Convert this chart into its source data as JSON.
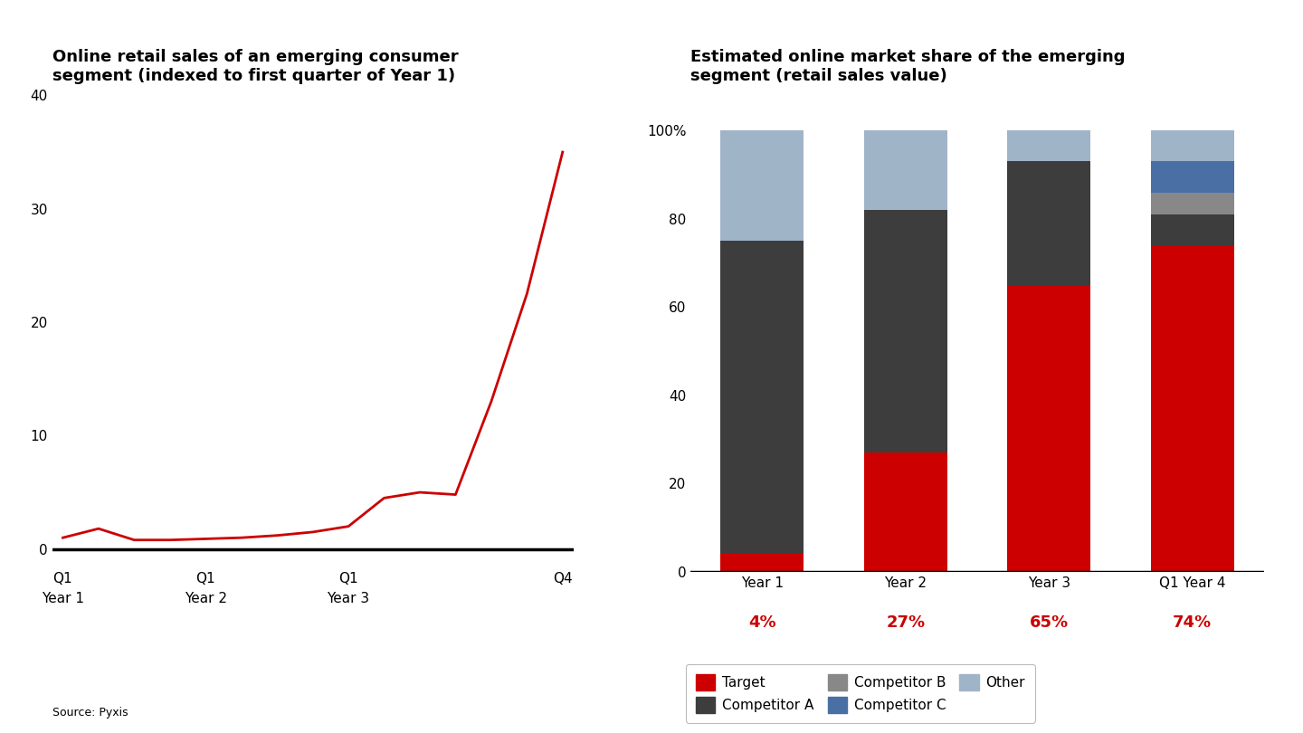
{
  "line_title": "Online retail sales of an emerging consumer\nsegment (indexed to first quarter of Year 1)",
  "bar_title": "Estimated online market share of the emerging\nsegment (retail sales value)",
  "source": "Source: Pyxis",
  "line_x_full": [
    0,
    1,
    2,
    3,
    4,
    5,
    6,
    7,
    8,
    9,
    10,
    11,
    12,
    13,
    14
  ],
  "line_y": [
    1.0,
    1.8,
    0.8,
    0.8,
    0.9,
    1.0,
    1.2,
    1.5,
    2.0,
    4.5,
    5.0,
    4.8,
    13.0,
    22.5,
    35.0
  ],
  "line_color": "#cc0000",
  "line_width": 2.0,
  "yticks_line": [
    0,
    10,
    20,
    30,
    40
  ],
  "xtick_positions": [
    0,
    4,
    8,
    14
  ],
  "xtick_labels_top": [
    "Q1",
    "Q1",
    "Q1",
    "Q4"
  ],
  "xtick_labels_bottom": [
    "Year 1",
    "Year 2",
    "Year 3",
    ""
  ],
  "bar_categories": [
    "Year 1",
    "Year 2",
    "Year 3",
    "Q1 Year 4"
  ],
  "bar_data": {
    "Target": [
      4,
      27,
      65,
      74
    ],
    "Competitor A": [
      71,
      55,
      28,
      7
    ],
    "Competitor B": [
      0,
      0,
      0,
      5
    ],
    "Competitor C": [
      0,
      0,
      0,
      7
    ],
    "Other": [
      25,
      18,
      7,
      7
    ]
  },
  "bar_colors": {
    "Target": "#cc0000",
    "Competitor A": "#3d3d3d",
    "Competitor B": "#888888",
    "Competitor C": "#4a6fa5",
    "Other": "#a0b4c8"
  },
  "bar_percentages": [
    "4%",
    "27%",
    "65%",
    "74%"
  ],
  "bar_pct_color": "#cc0000",
  "bg_color": "#ffffff",
  "title_fontsize": 13,
  "tick_fontsize": 11,
  "legend_fontsize": 11
}
